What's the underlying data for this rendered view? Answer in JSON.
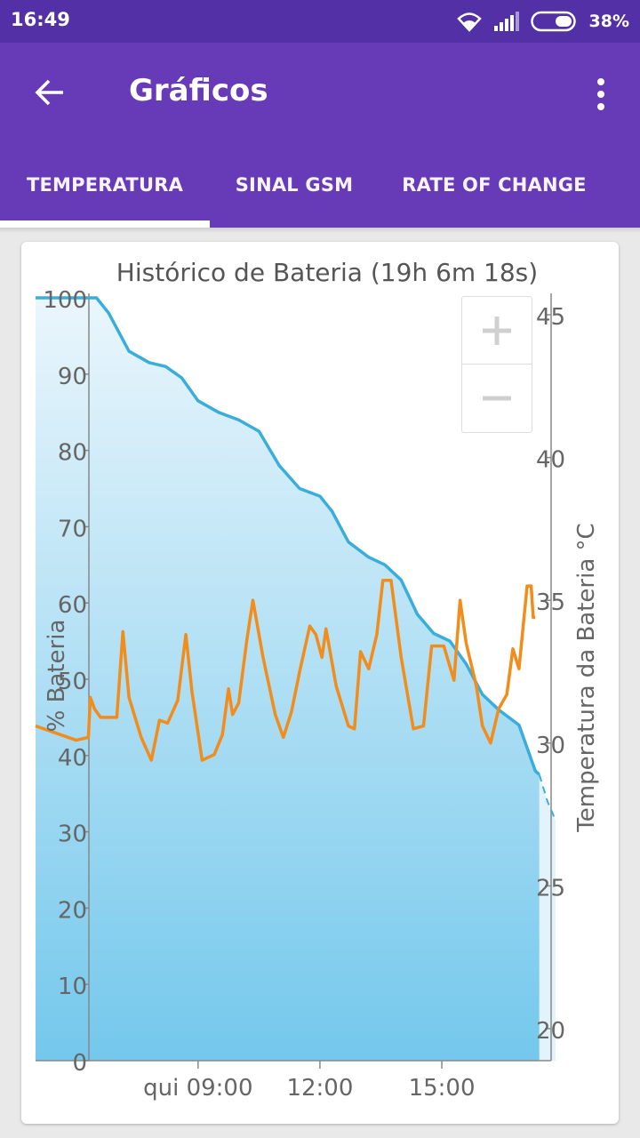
{
  "status_bar": {
    "time": "16:49",
    "battery_pct": "38%",
    "icons": [
      "wifi-icon",
      "signal-icon",
      "battery-icon"
    ]
  },
  "app_bar": {
    "title": "Gráficos",
    "back_icon": "arrow-left-icon",
    "overflow_icon": "more-vert-icon"
  },
  "tabs": [
    {
      "label": "TEMPERATURA",
      "selected": true
    },
    {
      "label": "SINAL GSM",
      "selected": false
    },
    {
      "label": "RATE OF CHANGE",
      "selected": false
    }
  ],
  "colors": {
    "primary": "#673ab7",
    "primary_dark": "#5430a6",
    "battery_line": "#3aaedb",
    "temperature_line": "#f28c1b"
  },
  "zoom": {
    "in_icon": "plus-icon",
    "out_icon": "minus-icon"
  },
  "chart_data": {
    "type": "line",
    "title": "Histórico de Bateria (19h 6m 18s)",
    "ylabel": "% Bateria",
    "y2label": "Temperatura da Bateria °C",
    "ylim": [
      0,
      100
    ],
    "y2lim": [
      19,
      45.5
    ],
    "yticks": [
      0,
      10,
      20,
      30,
      40,
      50,
      60,
      70,
      80,
      90,
      100
    ],
    "y2ticks": [
      20,
      25,
      30,
      35,
      40,
      45
    ],
    "xtick_labels": [
      {
        "label": "qui 09:00",
        "hour": 9
      },
      {
        "label": "12:00",
        "hour": 12
      },
      {
        "label": "15:00",
        "hour": 15
      }
    ],
    "xlim_hours": [
      5.0,
      17.8
    ],
    "series": [
      {
        "name": "% Bateria",
        "points": [
          [
            5.0,
            100
          ],
          [
            6.5,
            100
          ],
          [
            6.8,
            98
          ],
          [
            7.3,
            93
          ],
          [
            7.8,
            91.5
          ],
          [
            8.2,
            91
          ],
          [
            8.6,
            89.5
          ],
          [
            9.0,
            86.5
          ],
          [
            9.5,
            85
          ],
          [
            10.0,
            84
          ],
          [
            10.5,
            82.5
          ],
          [
            11.0,
            78
          ],
          [
            11.5,
            75
          ],
          [
            12.0,
            74
          ],
          [
            12.3,
            72
          ],
          [
            12.7,
            68
          ],
          [
            13.2,
            66
          ],
          [
            13.6,
            65
          ],
          [
            14.0,
            63
          ],
          [
            14.4,
            58.5
          ],
          [
            14.8,
            56
          ],
          [
            15.2,
            55
          ],
          [
            15.6,
            52
          ],
          [
            16.0,
            48
          ],
          [
            16.4,
            46
          ],
          [
            16.9,
            44
          ],
          [
            17.2,
            39.5
          ],
          [
            17.3,
            38
          ],
          [
            17.4,
            37.5
          ]
        ],
        "projection": [
          [
            17.4,
            37.5
          ],
          [
            17.6,
            34.0
          ],
          [
            17.8,
            31.5
          ]
        ]
      },
      {
        "name": "Temperatura da Bateria",
        "points": [
          [
            5.0,
            30.6
          ],
          [
            6.0,
            30.1
          ],
          [
            6.3,
            30.2
          ],
          [
            6.35,
            31.6
          ],
          [
            6.45,
            31.2
          ],
          [
            6.6,
            30.9
          ],
          [
            7.0,
            30.9
          ],
          [
            7.15,
            33.9
          ],
          [
            7.3,
            31.6
          ],
          [
            7.6,
            30.2
          ],
          [
            7.85,
            29.4
          ],
          [
            8.05,
            30.8
          ],
          [
            8.25,
            30.7
          ],
          [
            8.5,
            31.5
          ],
          [
            8.7,
            33.8
          ],
          [
            8.85,
            31.8
          ],
          [
            9.1,
            29.4
          ],
          [
            9.4,
            29.6
          ],
          [
            9.6,
            30.3
          ],
          [
            9.75,
            31.9
          ],
          [
            9.85,
            31.0
          ],
          [
            10.0,
            31.4
          ],
          [
            10.2,
            33.6
          ],
          [
            10.35,
            35.0
          ],
          [
            10.6,
            33.0
          ],
          [
            10.9,
            31.0
          ],
          [
            11.1,
            30.2
          ],
          [
            11.3,
            31.1
          ],
          [
            11.5,
            32.5
          ],
          [
            11.75,
            34.1
          ],
          [
            11.9,
            33.8
          ],
          [
            12.05,
            33.0
          ],
          [
            12.15,
            34.0
          ],
          [
            12.4,
            32.0
          ],
          [
            12.7,
            30.6
          ],
          [
            12.85,
            30.5
          ],
          [
            13.0,
            33.2
          ],
          [
            13.2,
            32.6
          ],
          [
            13.4,
            33.8
          ],
          [
            13.55,
            35.7
          ],
          [
            13.75,
            35.7
          ],
          [
            14.0,
            33.0
          ],
          [
            14.3,
            30.5
          ],
          [
            14.55,
            30.6
          ],
          [
            14.75,
            33.4
          ],
          [
            15.05,
            33.4
          ],
          [
            15.3,
            32.2
          ],
          [
            15.45,
            35.0
          ],
          [
            15.6,
            33.5
          ],
          [
            15.85,
            32.0
          ],
          [
            16.0,
            30.6
          ],
          [
            16.2,
            30.0
          ],
          [
            16.4,
            31.2
          ],
          [
            16.6,
            31.7
          ],
          [
            16.75,
            33.3
          ],
          [
            16.9,
            32.6
          ],
          [
            17.1,
            35.5
          ],
          [
            17.2,
            35.5
          ],
          [
            17.25,
            34.4
          ],
          [
            17.3,
            34.4
          ]
        ]
      }
    ]
  }
}
